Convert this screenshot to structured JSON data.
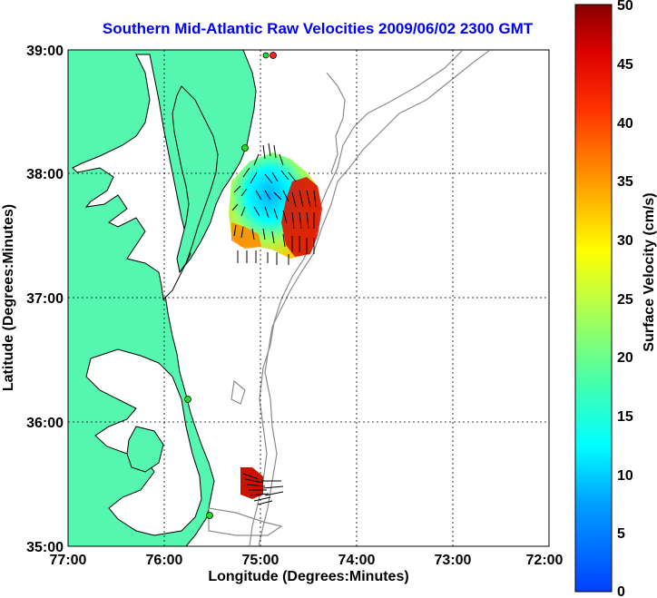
{
  "title": "Southern Mid-Atlantic Raw Velocities 2009/06/02 2300 GMT",
  "xlabel": "Longitude (Degrees:Minutes)",
  "ylabel": "Latitude (Degrees:Minutes)",
  "x_ticks": [
    "77:00",
    "76:00",
    "75:00",
    "74:00",
    "73:00",
    "72:00"
  ],
  "y_ticks": [
    "39:00",
    "38:00",
    "37:00",
    "36:00",
    "35:00"
  ],
  "colorbar": {
    "label": "Surface Velocity (cm/s)",
    "ticks": [
      "50",
      "45",
      "40",
      "35",
      "30",
      "25",
      "20",
      "15",
      "10",
      "5",
      "0"
    ],
    "min": 0,
    "max": 50
  },
  "colors": {
    "land": "#55f7b0",
    "bathymetry": "#8c8c8c",
    "station_marker": "#22dd22",
    "title": "#0000ff"
  }
}
